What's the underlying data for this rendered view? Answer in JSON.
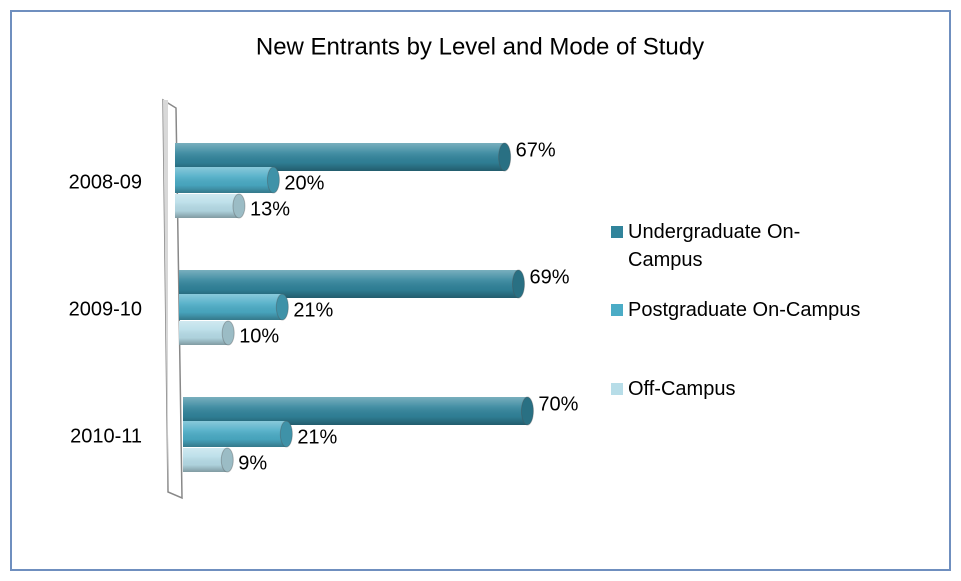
{
  "chart_data": {
    "type": "bar",
    "orientation": "horizontal",
    "style": "3d-cylinder",
    "title": "New Entrants by Level and Mode of Study",
    "categories": [
      "2008-09",
      "2009-10",
      "2010-11"
    ],
    "series": [
      {
        "name": "Undergraduate On-Campus",
        "color": "#31849b",
        "values": [
          67,
          69,
          70
        ],
        "value_labels": [
          "67%",
          "69%",
          "70%"
        ]
      },
      {
        "name": "Postgraduate On-Campus",
        "color": "#4bacc6",
        "values": [
          20,
          21,
          21
        ],
        "value_labels": [
          "20%",
          "21%",
          "21%"
        ]
      },
      {
        "name": "Off-Campus",
        "color": "#b7dde8",
        "values": [
          13,
          10,
          9
        ],
        "value_labels": [
          "13%",
          "10%",
          "9%"
        ]
      }
    ],
    "legend": "right"
  }
}
